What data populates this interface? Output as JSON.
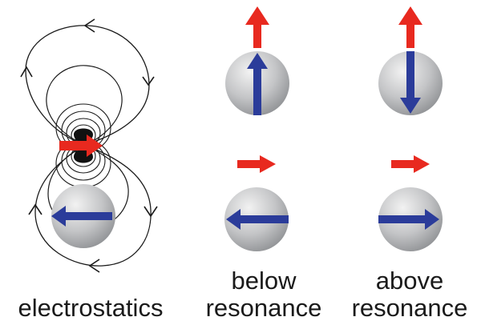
{
  "panels": [
    {
      "id": "electrostatics",
      "lines": [
        "electrostatics"
      ]
    },
    {
      "id": "below-resonance",
      "lines": [
        "below",
        "resonance"
      ]
    },
    {
      "id": "above-resonance",
      "lines": [
        "above",
        "resonance"
      ]
    }
  ],
  "colors": {
    "applied_field": "#e8291f",
    "induced_dipole": "#2b3c9a",
    "sphere_light": "#eeeeee",
    "sphere_dark": "#8d8f92",
    "field_lines": "#1a1a1a"
  },
  "icons": {
    "applied_field": "red-arrow-icon",
    "induced_dipole": "blue-arrow-icon",
    "particle": "gray-sphere-icon"
  }
}
